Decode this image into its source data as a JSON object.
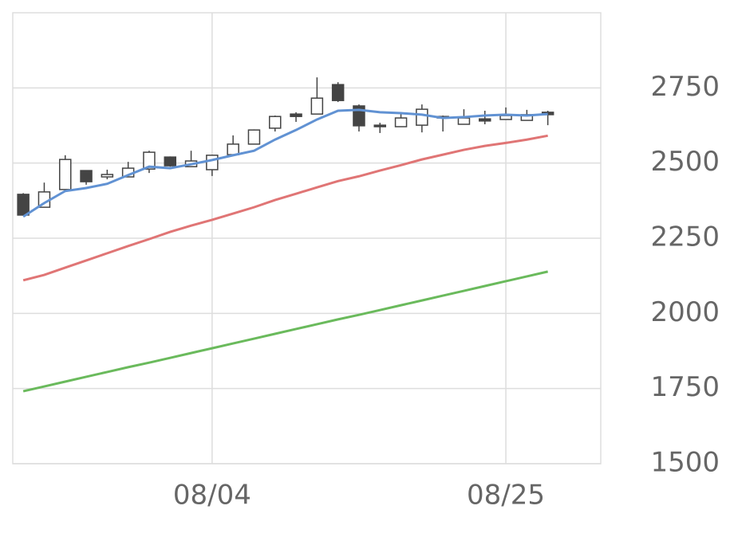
{
  "chart_data": {
    "type": "candlestick",
    "categories": [
      null,
      null,
      null,
      null,
      null,
      null,
      null,
      null,
      null,
      "08/04",
      null,
      null,
      null,
      null,
      null,
      null,
      null,
      null,
      null,
      null,
      null,
      null,
      null,
      "08/25",
      null,
      null
    ],
    "open": [
      2396,
      2353,
      2412,
      2475,
      2454,
      2454,
      2480,
      2520,
      2488,
      2478,
      2528,
      2563,
      2616,
      2663,
      2663,
      2761,
      2690,
      2626,
      2621,
      2626,
      2655,
      2629,
      2647,
      2645,
      2642,
      2669
    ],
    "high": [
      2400,
      2435,
      2526,
      2475,
      2478,
      2504,
      2541,
      2522,
      2541,
      2528,
      2592,
      2612,
      2658,
      2669,
      2785,
      2769,
      2695,
      2634,
      2663,
      2695,
      2658,
      2679,
      2674,
      2685,
      2677,
      2674
    ],
    "low": [
      2325,
      2353,
      2410,
      2428,
      2446,
      2454,
      2467,
      2488,
      2488,
      2457,
      2528,
      2563,
      2605,
      2637,
      2663,
      2703,
      2605,
      2600,
      2621,
      2602,
      2605,
      2629,
      2629,
      2645,
      2642,
      2626
    ],
    "close": [
      2327,
      2404,
      2512,
      2438,
      2462,
      2483,
      2536,
      2491,
      2507,
      2526,
      2563,
      2610,
      2655,
      2655,
      2716,
      2708,
      2624,
      2621,
      2650,
      2679,
      2650,
      2650,
      2640,
      2658,
      2661,
      2661
    ],
    "up_color": "#ffffff",
    "down_color": "#444444",
    "edge_color": "#444444",
    "lines": [
      {
        "color": "#6192d3",
        "values": [
          2322,
          2367,
          2407,
          2417,
          2431,
          2460,
          2488,
          2483,
          2496,
          2510,
          2526,
          2541,
          2578,
          2610,
          2645,
          2674,
          2677,
          2669,
          2666,
          2661,
          2650,
          2653,
          2658,
          2661,
          2658,
          2663
        ]
      },
      {
        "color": "#e07575",
        "values": [
          2110,
          2128,
          2152,
          2176,
          2200,
          2224,
          2247,
          2271,
          2292,
          2311,
          2332,
          2353,
          2377,
          2398,
          2419,
          2440,
          2456,
          2475,
          2493,
          2512,
          2528,
          2544,
          2557,
          2567,
          2578,
          2591
        ]
      },
      {
        "color": "#6aba5c",
        "values": [
          1741,
          1757,
          1773,
          1789,
          1805,
          1821,
          1836,
          1852,
          1868,
          1884,
          1900,
          1916,
          1932,
          1948,
          1964,
          1980,
          1995,
          2011,
          2027,
          2043,
          2059,
          2075,
          2091,
          2107,
          2123,
          2139
        ]
      }
    ],
    "ylim": [
      1500,
      3000
    ],
    "yticks": [
      1500,
      1750,
      2000,
      2250,
      2500,
      2750
    ],
    "grid": true,
    "y_axis_side": "right"
  }
}
